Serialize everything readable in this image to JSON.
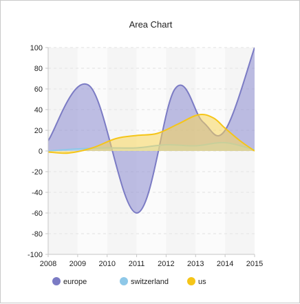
{
  "chart_data": {
    "type": "area",
    "title": "Area Chart",
    "xlabel": "",
    "ylabel": "",
    "x": [
      2008,
      2009,
      2010,
      2011,
      2012,
      2013,
      2014,
      2015
    ],
    "x_tick_labels": [
      "2008",
      "2009",
      "2010",
      "2011",
      "2012",
      "2013",
      "2014",
      "2015"
    ],
    "ylim": [
      -100,
      100
    ],
    "y_ticks": [
      -100,
      -80,
      -60,
      -40,
      -20,
      0,
      20,
      40,
      60,
      80,
      100
    ],
    "y_tick_labels": [
      "-100",
      "-80",
      "-60",
      "-40",
      "-20",
      "0",
      "20",
      "40",
      "60",
      "80",
      "100"
    ],
    "grid": true,
    "legend_position": "bottom",
    "curve": "smooth",
    "series": [
      {
        "name": "europe",
        "color": "#7b7bc4",
        "fill": "#8b8bd0",
        "points": [
          [
            2008,
            10
          ],
          [
            2009.4,
            63
          ],
          [
            2011,
            -60
          ],
          [
            2012.3,
            60
          ],
          [
            2013.25,
            28
          ],
          [
            2014,
            20
          ],
          [
            2015,
            100
          ]
        ]
      },
      {
        "name": "switzerland",
        "color": "#8ec8e8",
        "fill": "#b8def0",
        "points": [
          [
            2008,
            0
          ],
          [
            2009,
            2
          ],
          [
            2010,
            3
          ],
          [
            2011,
            3
          ],
          [
            2012,
            6
          ],
          [
            2013,
            5
          ],
          [
            2014,
            8
          ],
          [
            2015,
            1
          ]
        ]
      },
      {
        "name": "us",
        "color": "#f5c518",
        "fill": "#f7d55a",
        "points": [
          [
            2008,
            -1
          ],
          [
            2008.7,
            -2
          ],
          [
            2009.5,
            3
          ],
          [
            2010.3,
            12
          ],
          [
            2011,
            15
          ],
          [
            2011.7,
            17
          ],
          [
            2012.4,
            26
          ],
          [
            2013.1,
            35
          ],
          [
            2013.6,
            32
          ],
          [
            2014,
            22
          ],
          [
            2014.5,
            10
          ],
          [
            2015,
            0
          ]
        ]
      }
    ]
  }
}
